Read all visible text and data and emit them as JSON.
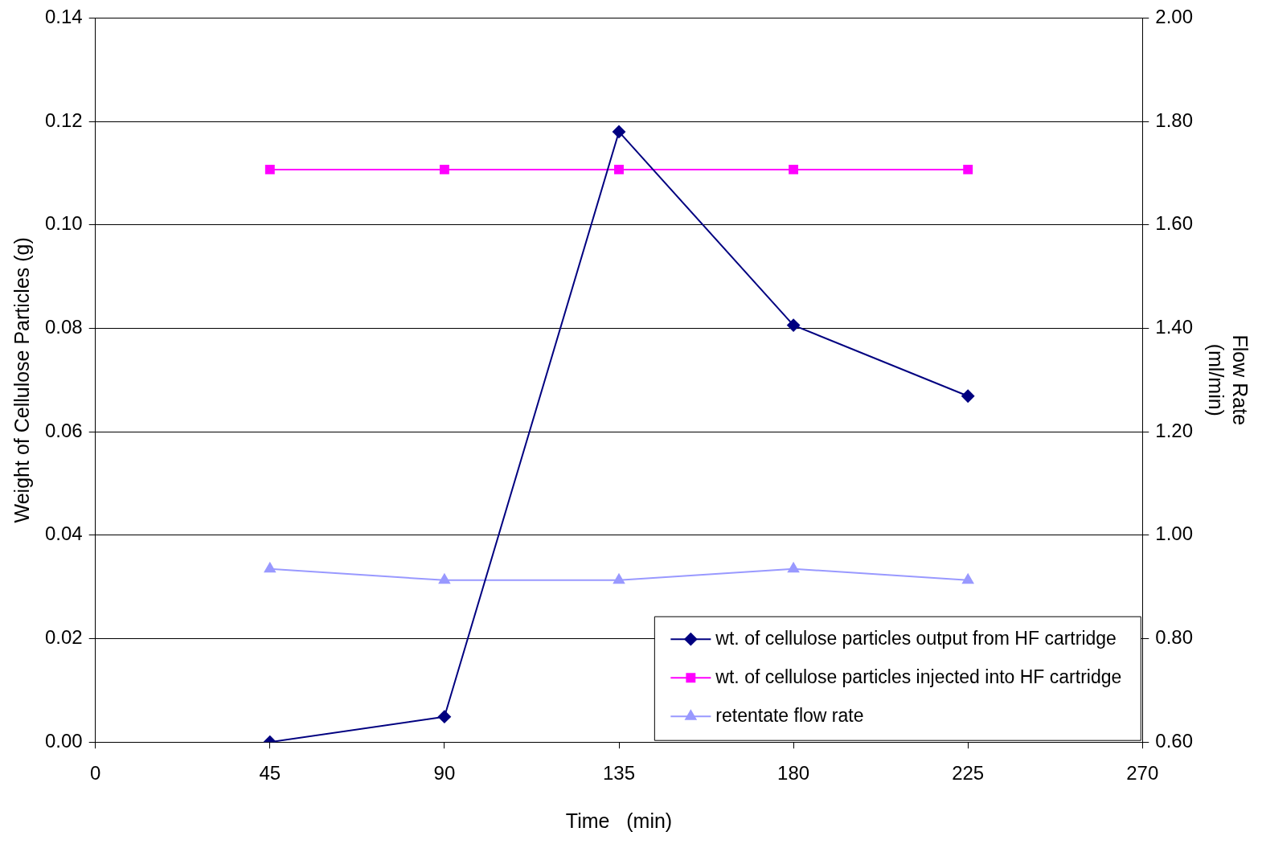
{
  "chart_data": {
    "type": "line",
    "xlabel": "Time   (min)",
    "ylabel": "Weight of Cellulose Particles (g)",
    "y2label": "Flow Rate\n(ml/min)",
    "x": [
      45,
      90,
      135,
      180,
      225
    ],
    "series": [
      {
        "name": "wt. of cellulose particles output from HF cartridge",
        "color": "#000080",
        "marker": "diamond",
        "values": [
          0.0,
          0.0049,
          0.118,
          0.0806,
          0.0669
        ]
      },
      {
        "name": "wt. of cellulose particles injected into HF cartridge",
        "color": "#ff00ff",
        "marker": "square",
        "values": [
          0.1107,
          0.1107,
          0.1107,
          0.1107,
          0.1107
        ]
      },
      {
        "name": "retentate flow rate",
        "color": "#9999ff",
        "marker": "triangle",
        "axis": "y2",
        "values": [
          0.935,
          0.913,
          0.913,
          0.935,
          0.913
        ]
      }
    ],
    "xlim": [
      0,
      270
    ],
    "xticks": [
      0,
      45,
      90,
      135,
      180,
      225,
      270
    ],
    "ylim": [
      0,
      0.14
    ],
    "yticks": [
      {
        "value": 0,
        "label": "0.00"
      },
      {
        "value": 0.02,
        "label": "0.02"
      },
      {
        "value": 0.04,
        "label": "0.04"
      },
      {
        "value": 0.06,
        "label": "0.06"
      },
      {
        "value": 0.08,
        "label": "0.08"
      },
      {
        "value": 0.1,
        "label": "0.10"
      },
      {
        "value": 0.12,
        "label": "0.12"
      },
      {
        "value": 0.14,
        "label": "0.14"
      }
    ],
    "y2lim": [
      0.6,
      2.0
    ],
    "y2ticks": [
      {
        "value": 0.6,
        "label": "0.60"
      },
      {
        "value": 0.8,
        "label": "0.80"
      },
      {
        "value": 1.0,
        "label": "1.00"
      },
      {
        "value": 1.2,
        "label": "1.20"
      },
      {
        "value": 1.4,
        "label": "1.40"
      },
      {
        "value": 1.6,
        "label": "1.60"
      },
      {
        "value": 1.8,
        "label": "1.80"
      },
      {
        "value": 2.0,
        "label": "2.00"
      }
    ],
    "grid": "y",
    "legend": "bottom right",
    "line_style": "solid"
  }
}
